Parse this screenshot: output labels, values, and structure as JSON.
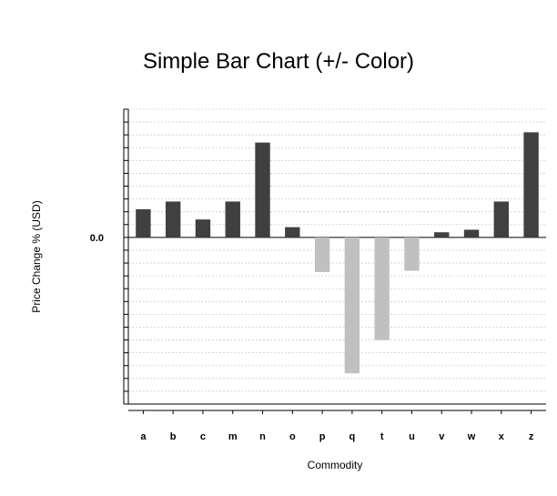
{
  "chart_data": {
    "type": "bar",
    "title": "Simple Bar Chart (+/- Color)",
    "xlabel": "Commodity",
    "ylabel": "Price Change % (USD)",
    "categories": [
      "a",
      "b",
      "c",
      "m",
      "n",
      "o",
      "p",
      "q",
      "t",
      "u",
      "v",
      "w",
      "x",
      "z"
    ],
    "values": [
      1.1,
      1.4,
      0.7,
      1.4,
      3.7,
      0.4,
      -1.35,
      -5.3,
      -4.0,
      -1.3,
      0.2,
      0.3,
      1.4,
      4.1
    ],
    "ylim": [
      -6.5,
      5.0
    ],
    "y_tick_labels": [
      {
        "value": 0.0,
        "label": "0.0"
      }
    ],
    "grid": true,
    "legend": "none",
    "colors": {
      "positive": "#404040",
      "negative": "#c0c0c0",
      "grid": "#cccccc",
      "axis": "#000000"
    }
  }
}
